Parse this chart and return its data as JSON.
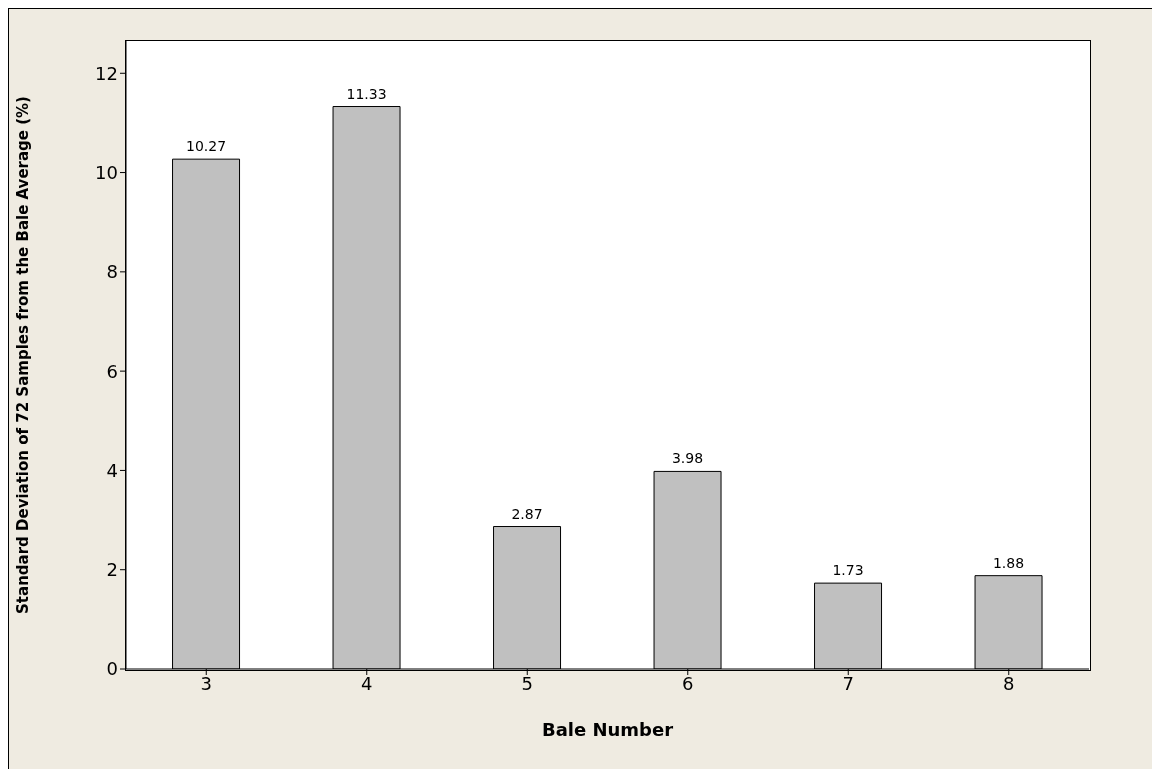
{
  "chart_data": {
    "type": "bar",
    "xlabel": "Bale Number",
    "ylabel": "Standard Deviation of 72 Samples from the Bale Average (%)",
    "categories": [
      "3",
      "4",
      "5",
      "6",
      "7",
      "8"
    ],
    "values": [
      10.27,
      11.33,
      2.87,
      3.98,
      1.73,
      1.88
    ],
    "color": "#c0c0c0",
    "ylim": [
      0,
      12.65
    ],
    "yticks": [
      0,
      2,
      4,
      6,
      8,
      10,
      12
    ],
    "data_labels": true
  }
}
